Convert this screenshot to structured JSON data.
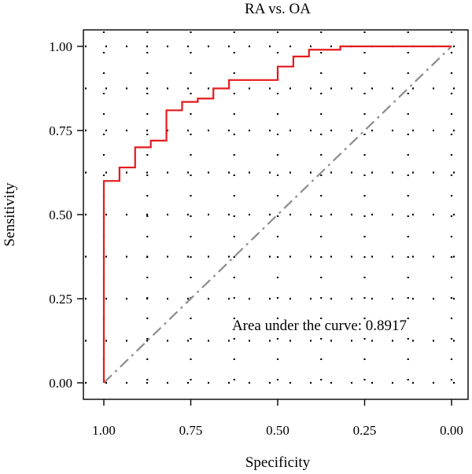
{
  "chart_data": {
    "type": "line",
    "title": "RA vs. OA",
    "xlabel": "Specificity",
    "ylabel": "Sensitivity",
    "x_reversed": true,
    "xlim": [
      1.0,
      0.0
    ],
    "ylim": [
      0.0,
      1.0
    ],
    "x_ticks": [
      1.0,
      0.75,
      0.5,
      0.25,
      0.0
    ],
    "x_tick_labels": [
      "1.00",
      "0.75",
      "0.50",
      "0.25",
      "0.00"
    ],
    "y_ticks": [
      0.0,
      0.25,
      0.5,
      0.75,
      1.0
    ],
    "y_tick_labels": [
      "0.00",
      "0.25",
      "0.50",
      "0.75",
      "1.00"
    ],
    "grid": "dotted",
    "annotation": "Area under the curve: 0.8917",
    "colors": {
      "roc": "#e41a1c",
      "reference": "#8c8c8c",
      "grid": "#000000"
    },
    "series": [
      {
        "style": "step",
        "points": [
          [
            1.0,
            0.0
          ],
          [
            1.0,
            0.6
          ],
          [
            0.955,
            0.6
          ],
          [
            0.955,
            0.64
          ],
          [
            0.91,
            0.64
          ],
          [
            0.91,
            0.7
          ],
          [
            0.865,
            0.7
          ],
          [
            0.865,
            0.72
          ],
          [
            0.82,
            0.72
          ],
          [
            0.82,
            0.81
          ],
          [
            0.775,
            0.81
          ],
          [
            0.775,
            0.835
          ],
          [
            0.73,
            0.835
          ],
          [
            0.73,
            0.845
          ],
          [
            0.685,
            0.845
          ],
          [
            0.685,
            0.875
          ],
          [
            0.64,
            0.875
          ],
          [
            0.64,
            0.9
          ],
          [
            0.5,
            0.9
          ],
          [
            0.5,
            0.94
          ],
          [
            0.455,
            0.94
          ],
          [
            0.455,
            0.97
          ],
          [
            0.41,
            0.97
          ],
          [
            0.41,
            0.99
          ],
          [
            0.32,
            0.99
          ],
          [
            0.32,
            1.0
          ],
          [
            0.0,
            1.0
          ]
        ]
      },
      {
        "style": "reference",
        "points": [
          [
            1.0,
            0.0
          ],
          [
            0.0,
            1.0
          ]
        ]
      }
    ]
  }
}
